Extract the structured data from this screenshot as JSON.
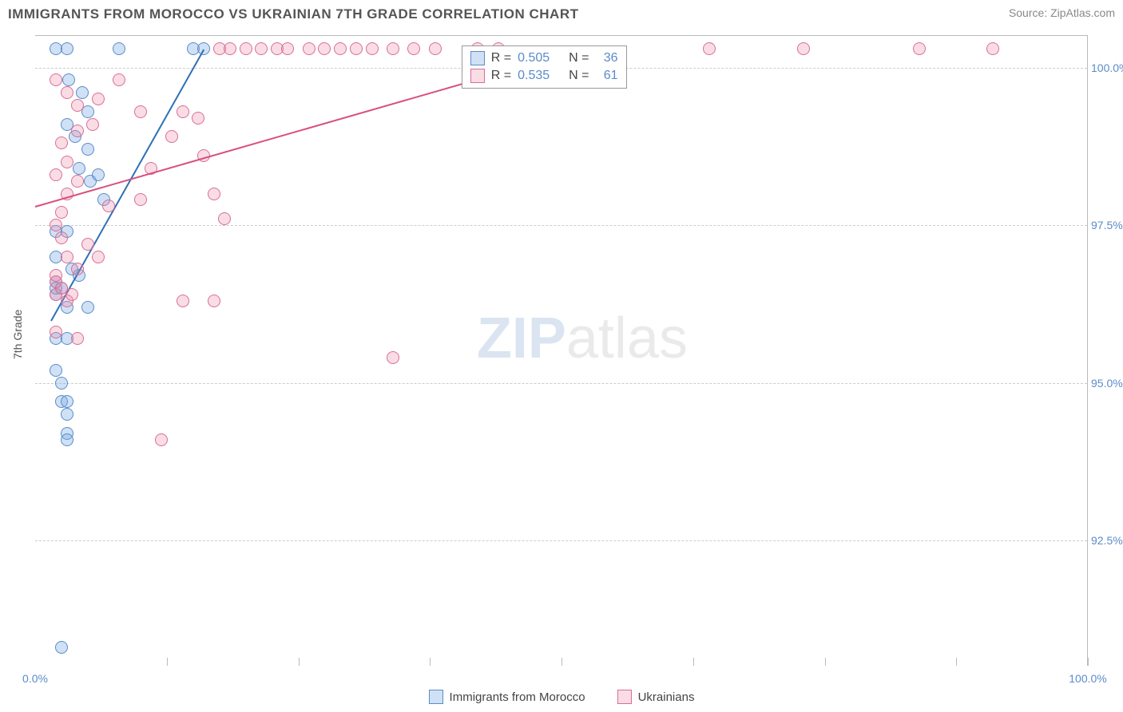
{
  "header": {
    "title": "IMMIGRANTS FROM MOROCCO VS UKRAINIAN 7TH GRADE CORRELATION CHART",
    "source": "Source: ZipAtlas.com"
  },
  "y_axis_label": "7th Grade",
  "watermark": {
    "part1": "ZIP",
    "part2": "atlas"
  },
  "chart": {
    "type": "scatter",
    "background_color": "#ffffff",
    "grid_color": "#cccccc",
    "border_color": "#bbbbbb",
    "tick_color": "#5b8bc9",
    "xlim": [
      0,
      100
    ],
    "ylim": [
      90.5,
      100.5
    ],
    "x_ticks": [
      {
        "pos": 0,
        "label": "0.0%"
      },
      {
        "pos": 100,
        "label": "100.0%"
      }
    ],
    "x_minor_ticks": [
      12.5,
      25,
      37.5,
      50,
      62.5,
      75,
      87.5,
      100
    ],
    "y_ticks": [
      {
        "pos": 92.5,
        "label": "92.5%"
      },
      {
        "pos": 95.0,
        "label": "95.0%"
      },
      {
        "pos": 97.5,
        "label": "97.5%"
      },
      {
        "pos": 100.0,
        "label": "100.0%"
      }
    ],
    "series": [
      {
        "name": "Immigrants from Morocco",
        "fill": "rgba(120,170,230,0.35)",
        "stroke": "#5a8cc7",
        "line_color": "#2e6fb5",
        "points": [
          [
            2.0,
            100.3
          ],
          [
            3.0,
            100.3
          ],
          [
            8.0,
            100.3
          ],
          [
            15.0,
            100.3
          ],
          [
            16.0,
            100.3
          ],
          [
            3.0,
            99.1
          ],
          [
            5.0,
            99.3
          ],
          [
            3.8,
            98.9
          ],
          [
            5.0,
            98.7
          ],
          [
            4.2,
            98.4
          ],
          [
            5.2,
            98.2
          ],
          [
            6.0,
            98.3
          ],
          [
            6.5,
            97.9
          ],
          [
            2.0,
            97.4
          ],
          [
            3.0,
            97.4
          ],
          [
            2.0,
            97.0
          ],
          [
            3.5,
            96.8
          ],
          [
            4.2,
            96.7
          ],
          [
            2.0,
            96.6
          ],
          [
            2.0,
            96.4
          ],
          [
            2.0,
            96.5
          ],
          [
            2.5,
            96.5
          ],
          [
            3.0,
            96.2
          ],
          [
            5.0,
            96.2
          ],
          [
            2.0,
            95.7
          ],
          [
            3.0,
            95.7
          ],
          [
            2.0,
            95.2
          ],
          [
            2.5,
            95.0
          ],
          [
            2.5,
            94.7
          ],
          [
            3.0,
            94.7
          ],
          [
            3.0,
            94.5
          ],
          [
            3.0,
            94.2
          ],
          [
            3.0,
            94.1
          ],
          [
            2.5,
            90.8
          ],
          [
            3.2,
            99.8
          ],
          [
            4.5,
            99.6
          ]
        ],
        "trend": {
          "x1": 1.5,
          "y1": 96.0,
          "x2": 16.0,
          "y2": 100.3
        }
      },
      {
        "name": "Ukrainians",
        "fill": "rgba(240,140,170,0.30)",
        "stroke": "#d96f94",
        "line_color": "#d94f7c",
        "points": [
          [
            17.5,
            100.3
          ],
          [
            18.5,
            100.3
          ],
          [
            20.0,
            100.3
          ],
          [
            21.5,
            100.3
          ],
          [
            23.0,
            100.3
          ],
          [
            24.0,
            100.3
          ],
          [
            26.0,
            100.3
          ],
          [
            27.5,
            100.3
          ],
          [
            29.0,
            100.3
          ],
          [
            30.5,
            100.3
          ],
          [
            32.0,
            100.3
          ],
          [
            34.0,
            100.3
          ],
          [
            36.0,
            100.3
          ],
          [
            38.0,
            100.3
          ],
          [
            42.0,
            100.3
          ],
          [
            44.0,
            100.3
          ],
          [
            64.0,
            100.3
          ],
          [
            73.0,
            100.3
          ],
          [
            84.0,
            100.3
          ],
          [
            91.0,
            100.3
          ],
          [
            8.0,
            99.8
          ],
          [
            6.0,
            99.5
          ],
          [
            10.0,
            99.3
          ],
          [
            14.0,
            99.3
          ],
          [
            15.5,
            99.2
          ],
          [
            13.0,
            98.9
          ],
          [
            16.0,
            98.6
          ],
          [
            11.0,
            98.4
          ],
          [
            17.0,
            98.0
          ],
          [
            10.0,
            97.9
          ],
          [
            7.0,
            97.8
          ],
          [
            18.0,
            97.6
          ],
          [
            2.5,
            97.3
          ],
          [
            5.0,
            97.2
          ],
          [
            3.0,
            97.0
          ],
          [
            6.0,
            97.0
          ],
          [
            4.0,
            96.8
          ],
          [
            2.0,
            96.6
          ],
          [
            2.0,
            96.4
          ],
          [
            3.0,
            96.3
          ],
          [
            14.0,
            96.3
          ],
          [
            17.0,
            96.3
          ],
          [
            2.0,
            95.8
          ],
          [
            4.0,
            95.7
          ],
          [
            2.0,
            97.5
          ],
          [
            2.5,
            97.7
          ],
          [
            3.0,
            98.0
          ],
          [
            4.0,
            98.2
          ],
          [
            2.0,
            98.3
          ],
          [
            3.0,
            98.5
          ],
          [
            2.5,
            98.8
          ],
          [
            4.0,
            99.0
          ],
          [
            5.5,
            99.1
          ],
          [
            34.0,
            95.4
          ],
          [
            12.0,
            94.1
          ],
          [
            2.0,
            96.7
          ],
          [
            2.5,
            96.5
          ],
          [
            3.5,
            96.4
          ],
          [
            2.0,
            99.8
          ],
          [
            3.0,
            99.6
          ],
          [
            4.0,
            99.4
          ]
        ],
        "trend": {
          "x1": 0,
          "y1": 97.8,
          "x2": 50.0,
          "y2": 100.2
        }
      }
    ],
    "stats_box": {
      "left_pct": 40.5,
      "top_pct": 1.5,
      "rows": [
        {
          "swatch_fill": "rgba(120,170,230,0.35)",
          "swatch_stroke": "#5a8cc7",
          "r_label": "R =",
          "r_val": "0.505",
          "n_label": "N =",
          "n_val": "36"
        },
        {
          "swatch_fill": "rgba(240,140,170,0.30)",
          "swatch_stroke": "#d96f94",
          "r_label": "R =",
          "r_val": "0.535",
          "n_label": "N =",
          "n_val": "61"
        }
      ]
    }
  },
  "bottom_legend": [
    {
      "fill": "rgba(120,170,230,0.35)",
      "stroke": "#5a8cc7",
      "label": "Immigrants from Morocco"
    },
    {
      "fill": "rgba(240,140,170,0.30)",
      "stroke": "#d96f94",
      "label": "Ukrainians"
    }
  ]
}
